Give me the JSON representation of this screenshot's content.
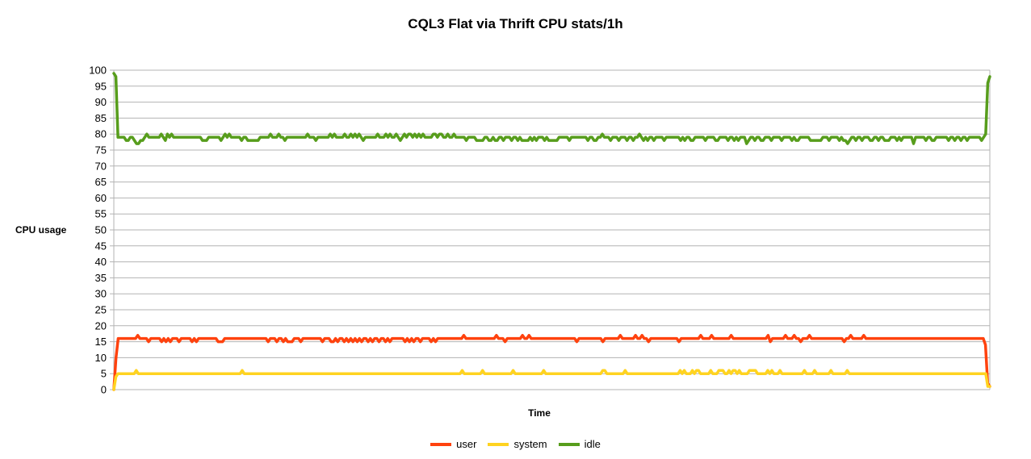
{
  "chart_data": {
    "type": "line",
    "title": "CQL3 Flat via Thrift CPU stats/1h",
    "xlabel": "Time",
    "ylabel": "CPU usage",
    "ylim": [
      0,
      100
    ],
    "y_ticks": [
      0,
      5,
      10,
      15,
      20,
      25,
      30,
      35,
      40,
      45,
      50,
      55,
      60,
      65,
      70,
      75,
      80,
      85,
      90,
      95,
      100
    ],
    "grid": true,
    "legend_position": "bottom",
    "series": [
      {
        "name": "user",
        "color": "#ff420e",
        "values": [
          0,
          10,
          16,
          16,
          16,
          16,
          16,
          16,
          16,
          16,
          16,
          17,
          16,
          16,
          16,
          16,
          15,
          16,
          16,
          16,
          16,
          16,
          15,
          16,
          15,
          16,
          15,
          16,
          16,
          16,
          15,
          16,
          16,
          16,
          16,
          16,
          15,
          16,
          15,
          16,
          16,
          16,
          16,
          16,
          16,
          16,
          16,
          16,
          15,
          15,
          15,
          16,
          16,
          16,
          16,
          16,
          16,
          16,
          16,
          16,
          16,
          16,
          16,
          16,
          16,
          16,
          16,
          16,
          16,
          16,
          16,
          15,
          16,
          16,
          16,
          15,
          16,
          16,
          15,
          16,
          15,
          15,
          15,
          16,
          16,
          16,
          15,
          16,
          16,
          16,
          16,
          16,
          16,
          16,
          16,
          16,
          15,
          16,
          16,
          16,
          15,
          15,
          16,
          15,
          16,
          16,
          15,
          16,
          15,
          16,
          15,
          16,
          15,
          16,
          15,
          16,
          16,
          15,
          16,
          15,
          16,
          16,
          15,
          16,
          16,
          15,
          16,
          15,
          16,
          16,
          16,
          16,
          16,
          16,
          15,
          16,
          15,
          16,
          15,
          16,
          16,
          15,
          16,
          16,
          16,
          16,
          15,
          16,
          15,
          16,
          16,
          16,
          16,
          16,
          16,
          16,
          16,
          16,
          16,
          16,
          16,
          17,
          16,
          16,
          16,
          16,
          16,
          16,
          16,
          16,
          16,
          16,
          16,
          16,
          16,
          16,
          17,
          16,
          16,
          16,
          15,
          16,
          16,
          16,
          16,
          16,
          16,
          16,
          17,
          16,
          16,
          17,
          16,
          16,
          16,
          16,
          16,
          16,
          16,
          16,
          16,
          16,
          16,
          16,
          16,
          16,
          16,
          16,
          16,
          16,
          16,
          16,
          16,
          15,
          16,
          16,
          16,
          16,
          16,
          16,
          16,
          16,
          16,
          16,
          16,
          15,
          16,
          16,
          16,
          16,
          16,
          16,
          16,
          17,
          16,
          16,
          16,
          16,
          16,
          16,
          17,
          16,
          16,
          17,
          16,
          16,
          15,
          16,
          16,
          16,
          16,
          16,
          16,
          16,
          16,
          16,
          16,
          16,
          16,
          16,
          15,
          16,
          16,
          16,
          16,
          16,
          16,
          16,
          16,
          16,
          17,
          16,
          16,
          16,
          16,
          17,
          16,
          16,
          16,
          16,
          16,
          16,
          16,
          16,
          17,
          16,
          16,
          16,
          16,
          16,
          16,
          16,
          16,
          16,
          16,
          16,
          16,
          16,
          16,
          16,
          16,
          17,
          15,
          16,
          16,
          16,
          16,
          16,
          16,
          17,
          16,
          16,
          16,
          17,
          16,
          16,
          15,
          16,
          16,
          16,
          17,
          16,
          16,
          16,
          16,
          16,
          16,
          16,
          16,
          16,
          16,
          16,
          16,
          16,
          16,
          16,
          15,
          16,
          16,
          17,
          16,
          16,
          16,
          16,
          16,
          17,
          16,
          16,
          16,
          16,
          16,
          16,
          16,
          16,
          16,
          16,
          16,
          16,
          16,
          16,
          16,
          16,
          16,
          16,
          16,
          16,
          16,
          16,
          16,
          16,
          16,
          16,
          16,
          16,
          16,
          16,
          16,
          16,
          16,
          16,
          16,
          16,
          16,
          16,
          16,
          16,
          16,
          16,
          16,
          16,
          16,
          16,
          16,
          16,
          16,
          16,
          16,
          16,
          16,
          16,
          16,
          14,
          2,
          1
        ]
      },
      {
        "name": "system",
        "color": "#ffd320",
        "values": [
          0,
          4,
          5,
          5,
          5,
          5,
          5,
          5,
          5,
          5,
          5,
          6,
          5,
          5,
          5,
          5,
          5,
          5,
          5,
          5,
          5,
          5,
          5,
          5,
          5,
          5,
          5,
          5,
          5,
          5,
          5,
          5,
          5,
          5,
          5,
          5,
          5,
          5,
          5,
          5,
          5,
          5,
          5,
          5,
          5,
          5,
          5,
          5,
          5,
          5,
          5,
          5,
          5,
          5,
          5,
          5,
          5,
          5,
          5,
          5,
          5,
          5,
          5,
          6,
          5,
          5,
          5,
          5,
          5,
          5,
          5,
          5,
          5,
          5,
          5,
          5,
          5,
          5,
          5,
          5,
          5,
          5,
          5,
          5,
          5,
          5,
          5,
          5,
          5,
          5,
          5,
          5,
          5,
          5,
          5,
          5,
          5,
          5,
          5,
          5,
          5,
          5,
          5,
          5,
          5,
          5,
          5,
          5,
          5,
          5,
          5,
          5,
          5,
          5,
          5,
          5,
          5,
          5,
          5,
          5,
          5,
          5,
          5,
          5,
          5,
          5,
          5,
          5,
          5,
          5,
          5,
          5,
          5,
          5,
          5,
          5,
          5,
          5,
          5,
          5,
          5,
          5,
          5,
          5,
          5,
          5,
          5,
          5,
          5,
          5,
          5,
          5,
          5,
          5,
          5,
          5,
          5,
          5,
          5,
          5,
          5,
          5,
          5,
          5,
          5,
          5,
          5,
          5,
          5,
          5,
          5,
          6,
          5,
          5,
          5,
          5,
          5,
          5,
          5,
          5,
          5,
          6,
          5,
          5,
          5,
          5,
          5,
          5,
          5,
          5,
          5,
          5,
          5,
          5,
          5,
          5,
          6,
          5,
          5,
          5,
          5,
          5,
          5,
          5,
          5,
          5,
          5,
          5,
          5,
          5,
          5,
          6,
          5,
          5,
          5,
          5,
          5,
          5,
          5,
          5,
          5,
          5,
          5,
          5,
          5,
          5,
          5,
          5,
          5,
          5,
          5,
          5,
          5,
          5,
          5,
          5,
          5,
          5,
          5,
          5,
          6,
          6,
          5,
          5,
          5,
          5,
          5,
          5,
          5,
          5,
          5,
          6,
          5,
          5,
          5,
          5,
          5,
          5,
          5,
          5,
          5,
          5,
          5,
          5,
          5,
          5,
          5,
          5,
          5,
          5,
          5,
          5,
          5,
          5,
          5,
          5,
          5,
          5,
          6,
          5,
          6,
          5,
          5,
          5,
          6,
          5,
          6,
          6,
          5,
          5,
          5,
          5,
          5,
          6,
          5,
          5,
          5,
          6,
          6,
          6,
          5,
          5,
          6,
          5,
          6,
          6,
          5,
          6,
          5,
          5,
          5,
          5,
          6,
          6,
          6,
          6,
          5,
          5,
          5,
          5,
          5,
          6,
          5,
          6,
          5,
          5,
          5,
          6,
          5,
          5,
          5,
          5,
          5,
          5,
          5,
          5,
          5,
          5,
          5,
          6,
          5,
          5,
          5,
          5,
          6,
          5,
          5,
          5,
          5,
          5,
          5,
          5,
          6,
          5,
          5,
          5,
          5,
          5,
          5,
          5,
          6,
          5,
          5,
          5,
          5,
          5,
          5,
          5,
          5,
          5,
          5,
          5,
          5,
          5,
          5,
          5,
          5,
          5,
          5,
          5,
          5,
          5,
          5,
          5,
          5,
          5,
          5,
          5,
          5,
          5,
          5,
          5,
          5,
          5,
          5,
          5,
          5,
          5,
          5,
          5,
          5,
          5,
          5,
          5,
          5,
          5,
          5,
          5,
          5,
          5,
          5,
          5,
          5,
          5,
          5,
          5,
          5,
          5,
          5,
          5,
          5,
          5,
          5,
          5,
          5,
          5,
          5,
          5,
          5,
          1,
          1
        ]
      },
      {
        "name": "idle",
        "color": "#579d1c",
        "values": [
          99,
          98,
          79,
          79,
          79,
          79,
          78,
          78,
          79,
          79,
          78,
          77,
          77,
          78,
          78,
          79,
          80,
          79,
          79,
          79,
          79,
          79,
          79,
          80,
          79,
          78,
          80,
          79,
          80,
          79,
          79,
          79,
          79,
          79,
          79,
          79,
          79,
          79,
          79,
          79,
          79,
          79,
          79,
          78,
          78,
          78,
          79,
          79,
          79,
          79,
          79,
          79,
          78,
          79,
          80,
          79,
          80,
          79,
          79,
          79,
          79,
          79,
          78,
          79,
          79,
          78,
          78,
          78,
          78,
          78,
          78,
          79,
          79,
          79,
          79,
          79,
          80,
          79,
          79,
          79,
          80,
          79,
          79,
          78,
          79,
          79,
          79,
          79,
          79,
          79,
          79,
          79,
          79,
          79,
          80,
          79,
          79,
          79,
          78,
          79,
          79,
          79,
          79,
          79,
          79,
          80,
          79,
          80,
          79,
          79,
          79,
          79,
          80,
          79,
          79,
          80,
          79,
          80,
          79,
          80,
          79,
          78,
          79,
          79,
          79,
          79,
          79,
          79,
          80,
          79,
          79,
          79,
          80,
          79,
          80,
          79,
          79,
          80,
          79,
          78,
          79,
          80,
          79,
          80,
          80,
          79,
          80,
          79,
          80,
          79,
          80,
          79,
          79,
          79,
          79,
          80,
          80,
          79,
          80,
          80,
          79,
          79,
          80,
          79,
          79,
          80,
          79,
          79,
          79,
          79,
          79,
          78,
          79,
          79,
          79,
          79,
          78,
          78,
          78,
          78,
          79,
          79,
          78,
          78,
          79,
          78,
          78,
          79,
          79,
          78,
          79,
          79,
          79,
          78,
          79,
          79,
          78,
          79,
          78,
          78,
          78,
          78,
          79,
          78,
          79,
          78,
          79,
          79,
          79,
          78,
          79,
          78,
          78,
          78,
          78,
          78,
          79,
          79,
          79,
          79,
          79,
          78,
          79,
          79,
          79,
          79,
          79,
          79,
          79,
          79,
          78,
          79,
          79,
          78,
          78,
          79,
          79,
          80,
          79,
          79,
          79,
          78,
          79,
          79,
          79,
          78,
          79,
          79,
          79,
          78,
          79,
          79,
          78,
          79,
          79,
          80,
          79,
          78,
          79,
          78,
          79,
          79,
          78,
          79,
          79,
          79,
          79,
          78,
          79,
          79,
          79,
          79,
          79,
          79,
          79,
          78,
          79,
          78,
          79,
          79,
          78,
          78,
          79,
          79,
          79,
          79,
          79,
          78,
          79,
          79,
          79,
          79,
          78,
          78,
          79,
          79,
          79,
          79,
          78,
          79,
          79,
          78,
          79,
          78,
          79,
          79,
          79,
          77,
          78,
          79,
          79,
          78,
          79,
          79,
          78,
          78,
          79,
          79,
          79,
          78,
          79,
          79,
          79,
          79,
          78,
          79,
          79,
          79,
          79,
          78,
          79,
          78,
          78,
          79,
          79,
          79,
          79,
          79,
          78,
          78,
          78,
          78,
          78,
          78,
          79,
          79,
          79,
          78,
          79,
          79,
          79,
          79,
          78,
          79,
          78,
          78,
          77,
          78,
          79,
          79,
          78,
          79,
          79,
          78,
          79,
          79,
          79,
          78,
          78,
          79,
          79,
          78,
          79,
          79,
          78,
          78,
          78,
          79,
          79,
          79,
          78,
          79,
          78,
          79,
          79,
          79,
          79,
          79,
          77,
          79,
          79,
          79,
          79,
          79,
          78,
          79,
          79,
          78,
          78,
          79,
          79,
          79,
          79,
          79,
          79,
          78,
          79,
          79,
          78,
          79,
          79,
          78,
          79,
          79,
          78,
          79,
          79,
          79,
          79,
          79,
          79,
          78,
          79,
          80,
          96,
          98
        ]
      }
    ]
  }
}
